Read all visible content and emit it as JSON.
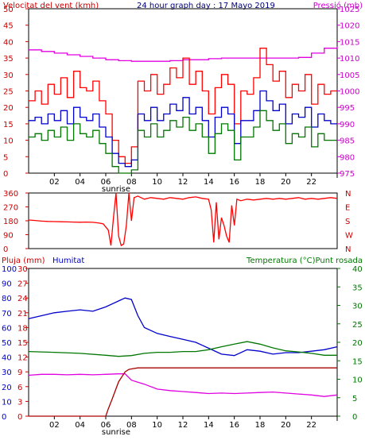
{
  "chart_data": [
    {
      "type": "line",
      "title": "24 hour graph day : 17 Mayo 2019",
      "ylabel_left": "Velocitat del vent (kmh)",
      "ylabel_right": "Pressió (mb)",
      "xlim": [
        0,
        24
      ],
      "x_ticks": [
        "02",
        "04",
        "06",
        "08",
        "10",
        "12",
        "14",
        "16",
        "18",
        "20",
        "22"
      ],
      "x_annotation": "sunrise",
      "y_left_ticks": [
        "0",
        "5",
        "10",
        "15",
        "20",
        "25",
        "30",
        "35",
        "40",
        "45",
        "50"
      ],
      "ylim_left": [
        0,
        50
      ],
      "y_right_ticks": [
        "975",
        "980",
        "985",
        "990",
        "995",
        "1000",
        "1005",
        "1010",
        "1015",
        "1020",
        "1025"
      ],
      "ylim_right": [
        975,
        1025
      ],
      "series": [
        {
          "name": "Pressió",
          "axis": "right",
          "color": "#e000e0",
          "x": [
            0,
            1,
            2,
            3,
            4,
            5,
            6,
            7,
            8,
            9,
            10,
            11,
            12,
            13,
            14,
            15,
            16,
            17,
            18,
            19,
            20,
            21,
            22,
            23,
            24
          ],
          "values": [
            1012.5,
            1012,
            1011.5,
            1011,
            1010.5,
            1010,
            1009.5,
            1009.2,
            1009,
            1009,
            1009,
            1009.2,
            1009.5,
            1009.5,
            1009.8,
            1010,
            1010,
            1010,
            1010,
            1010,
            1010,
            1010.2,
            1011.5,
            1013,
            1013.5
          ]
        },
        {
          "color": "#ff0000",
          "axis": "left",
          "x": [
            0,
            0.5,
            1,
            1.5,
            2,
            2.5,
            3,
            3.5,
            4,
            4.5,
            5,
            5.5,
            6,
            6.5,
            7,
            7.5,
            8,
            8.5,
            9,
            9.5,
            10,
            10.5,
            11,
            11.5,
            12,
            12.5,
            13,
            13.5,
            14,
            14.5,
            15,
            15.5,
            16,
            16.5,
            17,
            17.5,
            18,
            18.5,
            19,
            19.5,
            20,
            20.5,
            21,
            21.5,
            22,
            22.5,
            23,
            23.5,
            24
          ],
          "values": [
            22,
            25,
            21,
            27,
            24,
            29,
            23,
            31,
            26,
            25,
            28,
            22,
            18,
            10,
            5,
            3,
            8,
            28,
            25,
            30,
            24,
            27,
            32,
            29,
            35,
            27,
            31,
            25,
            18,
            26,
            30,
            27,
            15,
            25,
            24,
            29,
            38,
            33,
            28,
            31,
            23,
            27,
            25,
            30,
            21,
            27,
            24,
            25,
            25
          ]
        },
        {
          "color": "#0000cc",
          "axis": "left",
          "x": [
            0,
            0.5,
            1,
            1.5,
            2,
            2.5,
            3,
            3.5,
            4,
            4.5,
            5,
            5.5,
            6,
            6.5,
            7,
            7.5,
            8,
            8.5,
            9,
            9.5,
            10,
            10.5,
            11,
            11.5,
            12,
            12.5,
            13,
            13.5,
            14,
            14.5,
            15,
            15.5,
            16,
            16.5,
            17,
            17.5,
            18,
            18.5,
            19,
            19.5,
            20,
            20.5,
            21,
            21.5,
            22,
            22.5,
            23,
            23.5,
            24
          ],
          "values": [
            16,
            17,
            15,
            18,
            16,
            19,
            15,
            20,
            17,
            16,
            18,
            14,
            11,
            6,
            3,
            2,
            4,
            18,
            16,
            20,
            16,
            18,
            21,
            19,
            23,
            18,
            20,
            16,
            11,
            17,
            20,
            18,
            9,
            16,
            16,
            19,
            25,
            22,
            19,
            21,
            15,
            18,
            17,
            20,
            14,
            18,
            16,
            15,
            15
          ]
        },
        {
          "color": "#007700",
          "axis": "left",
          "x": [
            0,
            0.5,
            1,
            1.5,
            2,
            2.5,
            3,
            3.5,
            4,
            4.5,
            5,
            5.5,
            6,
            6.5,
            7,
            7.5,
            8,
            8.5,
            9,
            9.5,
            10,
            10.5,
            11,
            11.5,
            12,
            12.5,
            13,
            13.5,
            14,
            14.5,
            15,
            15.5,
            16,
            16.5,
            17,
            17.5,
            18,
            18.5,
            19,
            19.5,
            20,
            20.5,
            21,
            21.5,
            22,
            22.5,
            23,
            23.5,
            24
          ],
          "values": [
            11,
            12,
            10,
            13,
            11,
            14,
            10,
            15,
            12,
            11,
            13,
            9,
            6,
            2,
            0,
            0,
            1,
            13,
            11,
            15,
            11,
            13,
            16,
            14,
            17,
            13,
            15,
            11,
            6,
            12,
            15,
            13,
            4,
            11,
            11,
            14,
            19,
            16,
            13,
            15,
            9,
            12,
            11,
            14,
            8,
            12,
            10,
            10,
            10
          ]
        }
      ]
    },
    {
      "type": "scatter",
      "x_ticks": [],
      "xlim": [
        0,
        24
      ],
      "y_left_ticks": [
        "0",
        "90",
        "180",
        "270",
        "360"
      ],
      "ylim": [
        0,
        360
      ],
      "y_right_ticks": [
        "N",
        "E",
        "S",
        "W",
        "N"
      ],
      "series": [
        {
          "color": "#ff0000",
          "x": [
            0,
            0.5,
            1,
            1.5,
            2,
            2.5,
            3,
            3.5,
            4,
            4.5,
            5,
            5.5,
            5.8,
            6.0,
            6.2,
            6.4,
            6.6,
            6.8,
            7.0,
            7.2,
            7.4,
            7.6,
            7.8,
            8.0,
            8.2,
            8.5,
            9,
            9.5,
            10,
            10.5,
            11,
            11.5,
            12,
            12.5,
            13,
            13.5,
            14,
            14.2,
            14.4,
            14.6,
            14.8,
            15.0,
            15.2,
            15.4,
            15.6,
            15.8,
            16.0,
            16.2,
            16.5,
            17,
            17.5,
            18,
            18.5,
            19,
            19.5,
            20,
            20.5,
            21,
            21.5,
            22,
            22.5,
            23,
            23.5,
            24
          ],
          "values": [
            185,
            182,
            178,
            176,
            175,
            174,
            173,
            172,
            171,
            172,
            170,
            165,
            160,
            140,
            120,
            20,
            200,
            360,
            80,
            20,
            30,
            150,
            360,
            180,
            330,
            340,
            320,
            330,
            325,
            320,
            330,
            325,
            320,
            330,
            335,
            325,
            320,
            250,
            40,
            300,
            60,
            200,
            150,
            80,
            40,
            280,
            150,
            320,
            310,
            320,
            315,
            320,
            325,
            320,
            325,
            320,
            325,
            330,
            320,
            325,
            320,
            325,
            330,
            325
          ]
        }
      ]
    },
    {
      "type": "line",
      "ylabel_left_1": "Pluja (mm)",
      "ylabel_left_2": "Humitat",
      "ylabel_right": "Temperatura (°C)Punt rosada",
      "x_ticks": [
        "02",
        "04",
        "06",
        "08",
        "10",
        "12",
        "14",
        "16",
        "18",
        "20",
        "22"
      ],
      "x_annotation": "sunrise",
      "xlim": [
        0,
        24
      ],
      "y_left1_ticks": [
        "0",
        "10",
        "20",
        "30",
        "40",
        "50",
        "60",
        "70",
        "80",
        "90",
        "100"
      ],
      "ylim_left1": [
        0,
        100
      ],
      "y_left2_ticks": [
        "0",
        "3",
        "6",
        "9",
        "12",
        "15",
        "18",
        "21",
        "24",
        "27",
        "30"
      ],
      "ylim_left2": [
        0,
        30
      ],
      "y_right_ticks": [
        "0",
        "5",
        "10",
        "15",
        "20",
        "25",
        "30",
        "35",
        "40"
      ],
      "ylim_right": [
        0,
        40
      ],
      "series": [
        {
          "name": "Humitat",
          "axis": "left1",
          "color": "#0000cc",
          "x": [
            0,
            1,
            2,
            3,
            4,
            5,
            6,
            7,
            7.5,
            8,
            8.5,
            9,
            10,
            11,
            12,
            13,
            14,
            15,
            16,
            17,
            18,
            19,
            20,
            21,
            22,
            23,
            24
          ],
          "values": [
            66,
            68,
            70,
            71,
            72,
            71,
            74,
            78,
            80,
            79,
            68,
            60,
            56,
            54,
            52,
            50,
            46,
            42,
            41,
            45,
            44,
            42,
            43,
            43,
            44,
            45,
            47
          ]
        },
        {
          "axis": "right",
          "color": "#007700",
          "x": [
            0,
            2,
            4,
            6,
            7,
            8,
            9,
            10,
            11,
            12,
            13,
            14,
            15,
            16,
            17,
            18,
            19,
            20,
            21,
            22,
            23,
            24
          ],
          "values": [
            17.5,
            17.3,
            17,
            16.5,
            16.2,
            16.4,
            17,
            17.3,
            17.3,
            17.5,
            17.5,
            18,
            18.8,
            19.5,
            20.2,
            19.5,
            18.5,
            17.7,
            17.4,
            17,
            16.5,
            16.5
          ]
        },
        {
          "axis": "left2",
          "color": "#e000e0",
          "x": [
            0,
            1,
            2,
            3,
            4,
            5,
            6,
            7,
            7.5,
            8,
            9,
            10,
            11,
            12,
            13,
            14,
            15,
            16,
            17,
            18,
            19,
            20,
            21,
            22,
            23,
            24
          ],
          "values": [
            8.3,
            8.5,
            8.5,
            8.4,
            8.5,
            8.4,
            8.5,
            8.6,
            8.6,
            7.3,
            6.5,
            5.5,
            5.2,
            5,
            4.8,
            4.6,
            4.7,
            4.6,
            4.7,
            4.8,
            4.9,
            4.7,
            4.5,
            4.3,
            4,
            4.3
          ]
        },
        {
          "name": "Pluja",
          "axis": "left2",
          "color": "#aa0000",
          "x": [
            0,
            6,
            6.2,
            6.5,
            7,
            7.5,
            7.8,
            8,
            8.5,
            24
          ],
          "values": [
            0,
            0,
            1.5,
            3.5,
            7,
            9,
            9.5,
            9.6,
            9.8,
            9.8
          ]
        }
      ]
    }
  ]
}
